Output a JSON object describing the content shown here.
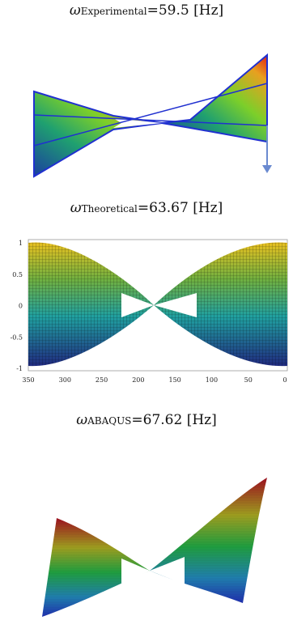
{
  "panels": [
    {
      "symbol": "ω",
      "subscript": "Experimental",
      "value": "=59.5 [Hz]"
    },
    {
      "symbol": "ω",
      "subscript": "Theoretical",
      "value": "=63.67 [Hz]",
      "yticks": [
        1,
        0.5,
        0,
        -0.5,
        -1
      ],
      "xticks": [
        350,
        300,
        250,
        200,
        150,
        100,
        50,
        0
      ]
    },
    {
      "symbol": "ω",
      "subscript": "ABAQUS",
      "value": "=67.62 [Hz]"
    }
  ]
}
